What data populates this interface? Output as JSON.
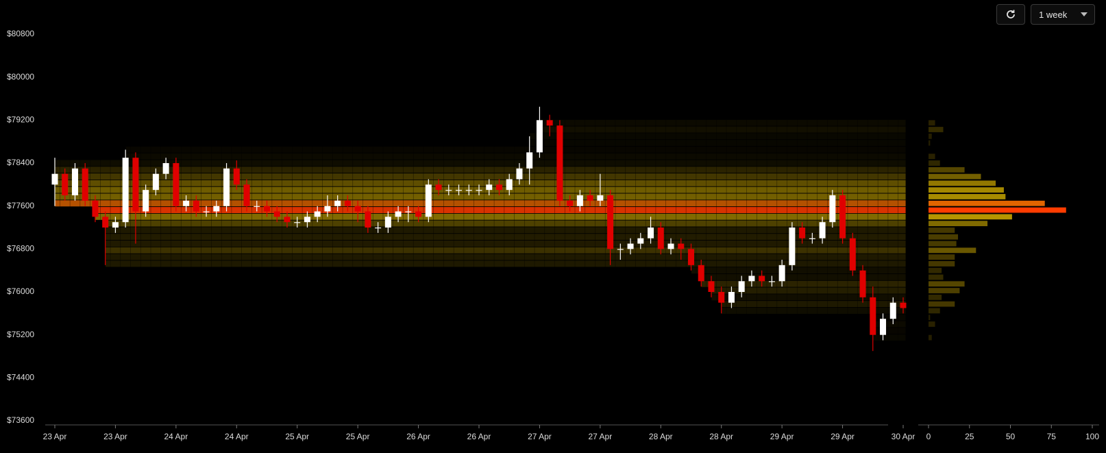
{
  "chart_data": [
    {
      "type": "candlestick",
      "categories": [
        "23 Apr",
        null,
        null,
        null,
        null,
        null,
        "23 Apr",
        null,
        null,
        null,
        null,
        null,
        "24 Apr",
        null,
        null,
        null,
        null,
        null,
        "24 Apr",
        null,
        null,
        null,
        null,
        null,
        "25 Apr",
        null,
        null,
        null,
        null,
        null,
        "25 Apr",
        null,
        null,
        null,
        null,
        null,
        "26 Apr",
        null,
        null,
        null,
        null,
        null,
        "26 Apr",
        null,
        null,
        null,
        null,
        null,
        "27 Apr",
        null,
        null,
        null,
        null,
        null,
        "27 Apr",
        null,
        null,
        null,
        null,
        null,
        "28 Apr",
        null,
        null,
        null,
        null,
        null,
        "28 Apr",
        null,
        null,
        null,
        null,
        null,
        "29 Apr",
        null,
        null,
        null,
        null,
        null,
        "29 Apr",
        null,
        null,
        null,
        null,
        null,
        "30 Apr"
      ],
      "open": [
        78000,
        78200,
        77800,
        78300,
        77700,
        77400,
        77200,
        77300,
        78500,
        77500,
        77900,
        78200,
        78400,
        77600,
        77700,
        77500,
        77500,
        77600,
        78300,
        78000,
        77600,
        77600,
        77500,
        77400,
        77300,
        77300,
        77400,
        77500,
        77600,
        77700,
        77600,
        77500,
        77200,
        77200,
        77400,
        77500,
        77500,
        77400,
        78000,
        77900,
        77900,
        77900,
        77900,
        77900,
        78000,
        77900,
        78100,
        78300,
        78600,
        79200,
        79100,
        77700,
        77600,
        77800,
        77700,
        77800,
        76800,
        76800,
        76900,
        77000,
        77200,
        76800,
        76900,
        76800,
        76500,
        76200,
        76000,
        75800,
        76000,
        76200,
        76300,
        76200,
        76200,
        76500,
        77200,
        77000,
        77000,
        77300,
        77800,
        77000,
        76400,
        75900,
        75200,
        75500,
        75800
      ],
      "high": [
        78500,
        78300,
        78400,
        78400,
        77800,
        77500,
        77400,
        78650,
        78600,
        78000,
        78300,
        78500,
        78500,
        77800,
        77800,
        77600,
        77700,
        78400,
        78450,
        78100,
        77700,
        77700,
        77600,
        77500,
        77400,
        77500,
        77600,
        77800,
        77800,
        77800,
        77700,
        77600,
        77300,
        77500,
        77600,
        77600,
        77600,
        78100,
        78100,
        78000,
        78000,
        78000,
        78000,
        78100,
        78100,
        78200,
        78400,
        78900,
        79450,
        79300,
        79200,
        77800,
        77900,
        77900,
        78200,
        77900,
        76900,
        77000,
        77100,
        77400,
        77300,
        77000,
        77000,
        76900,
        76600,
        76300,
        76100,
        76100,
        76300,
        76400,
        76400,
        76300,
        76600,
        77300,
        77300,
        77100,
        77400,
        77900,
        77900,
        77100,
        76500,
        76100,
        75600,
        75900,
        75900
      ],
      "low": [
        77600,
        77700,
        77700,
        77600,
        77300,
        76500,
        77100,
        77200,
        76900,
        77400,
        77800,
        78100,
        77500,
        77500,
        77400,
        77400,
        77400,
        77500,
        77900,
        77500,
        77500,
        77400,
        77300,
        77200,
        77200,
        77200,
        77300,
        77400,
        77500,
        77500,
        77300,
        77100,
        77100,
        77100,
        77300,
        77300,
        77300,
        77300,
        77800,
        77800,
        77800,
        77800,
        77800,
        77800,
        77800,
        77800,
        78000,
        78000,
        78500,
        78900,
        77600,
        77500,
        77500,
        77600,
        77600,
        76500,
        76600,
        76700,
        76800,
        76900,
        76700,
        76700,
        76600,
        76400,
        76100,
        75900,
        75600,
        75700,
        75900,
        76100,
        76100,
        76100,
        76100,
        76400,
        76900,
        76900,
        76900,
        77200,
        76900,
        76300,
        75800,
        74900,
        75100,
        75400,
        75600
      ],
      "close": [
        78200,
        77800,
        78300,
        77700,
        77400,
        77200,
        77300,
        78500,
        77500,
        77900,
        78200,
        78400,
        77600,
        77700,
        77500,
        77500,
        77600,
        78300,
        78000,
        77600,
        77600,
        77500,
        77400,
        77300,
        77300,
        77400,
        77500,
        77600,
        77700,
        77600,
        77500,
        77200,
        77200,
        77400,
        77500,
        77500,
        77400,
        78000,
        77900,
        77900,
        77900,
        77900,
        77900,
        78000,
        77900,
        78100,
        78300,
        78600,
        79200,
        79100,
        77700,
        77600,
        77800,
        77700,
        77800,
        76800,
        76800,
        76900,
        77000,
        77200,
        76800,
        76900,
        76800,
        76500,
        76200,
        76000,
        75800,
        76000,
        76200,
        76300,
        76200,
        76200,
        76500,
        77200,
        77000,
        77000,
        77300,
        77800,
        77000,
        76400,
        75900,
        75200,
        75500,
        75800,
        75700
      ],
      "up_color": "#ffffff",
      "down_color": "#e00000",
      "ylim": [
        73600,
        80800
      ],
      "yticks": [
        {
          "value": 73600,
          "label": "$73600"
        },
        {
          "value": 74400,
          "label": "$74400"
        },
        {
          "value": 75200,
          "label": "$75200"
        },
        {
          "value": 76000,
          "label": "$76000"
        },
        {
          "value": 76800,
          "label": "$76800"
        },
        {
          "value": 77600,
          "label": "$77600"
        },
        {
          "value": 78400,
          "label": "$78400"
        },
        {
          "value": 79200,
          "label": "$79200"
        },
        {
          "value": 80000,
          "label": "$80000"
        },
        {
          "value": 80800,
          "label": "$80800"
        }
      ],
      "grid": false
    },
    {
      "type": "bar",
      "orientation": "horizontal",
      "levels": [
        79150,
        79025,
        78900,
        78775,
        78650,
        78525,
        78400,
        78275,
        78150,
        78025,
        77900,
        77775,
        77650,
        77525,
        77400,
        77275,
        77150,
        77025,
        76900,
        76775,
        76650,
        76525,
        76400,
        76275,
        76150,
        76025,
        75900,
        75775,
        75650,
        75525,
        75400,
        75275,
        75150
      ],
      "values": [
        4,
        9,
        2,
        1,
        0,
        4,
        7,
        22,
        32,
        41,
        46,
        47,
        71,
        84,
        51,
        36,
        16,
        18,
        17,
        29,
        16,
        16,
        8,
        9,
        22,
        19,
        8,
        16,
        7,
        1,
        4,
        0,
        2
      ],
      "heat_colors": [
        "#4a3c00",
        "#e8c000",
        "#ff3c00"
      ],
      "xlim": [
        0,
        100
      ],
      "xticks": [
        0,
        25,
        50,
        75,
        100
      ]
    }
  ],
  "controls": {
    "range": "1 week"
  }
}
